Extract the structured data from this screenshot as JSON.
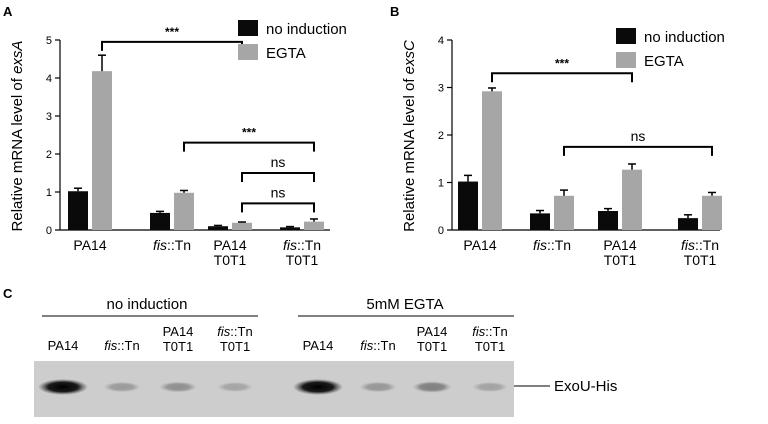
{
  "colors": {
    "no_induction": "#0a0a0a",
    "egta": "#a6a6a6"
  },
  "chart_data": [
    {
      "panel": "A",
      "type": "bar",
      "ylabel_prefix": "Relative mRNA level of ",
      "ylabel_gene": "exsA",
      "ylim": [
        0,
        5
      ],
      "yticks": [
        "0",
        "1",
        "2",
        "3",
        "4",
        "5"
      ],
      "categories": [
        {
          "italic": "",
          "plain": "PA14",
          "line2": ""
        },
        {
          "italic": "fis",
          "plain": "::Tn",
          "line2": ""
        },
        {
          "italic": "",
          "plain": "PA14",
          "line2": "T0T1"
        },
        {
          "italic": "fis",
          "plain": "::Tn",
          "line2": "T0T1"
        }
      ],
      "series": [
        {
          "name": "no induction",
          "values": [
            1.02,
            0.45,
            0.1,
            0.07
          ],
          "errors": [
            0.08,
            0.04,
            0.02,
            0.02
          ]
        },
        {
          "name": "EGTA",
          "values": [
            4.18,
            0.98,
            0.19,
            0.22
          ],
          "errors": [
            0.42,
            0.06,
            0.02,
            0.07
          ]
        }
      ],
      "comparisons": [
        {
          "label": "***",
          "from_group": 0,
          "to_group": 2,
          "level": 4.95
        },
        {
          "label": "***",
          "from_group": 1,
          "to_group": 3,
          "level": 2.3
        },
        {
          "label": "ns",
          "from_group": 2,
          "to_group": 3,
          "level": 1.5
        },
        {
          "label": "ns",
          "from_group": 2,
          "to_group": 3,
          "level": 0.7
        }
      ],
      "legend": [
        "no induction",
        "EGTA"
      ]
    },
    {
      "panel": "B",
      "type": "bar",
      "ylabel_prefix": "Relative mRNA level of ",
      "ylabel_gene": "exsC",
      "ylim": [
        0,
        4
      ],
      "yticks": [
        "0",
        "1",
        "2",
        "3",
        "4"
      ],
      "categories": [
        {
          "italic": "",
          "plain": "PA14",
          "line2": ""
        },
        {
          "italic": "fis",
          "plain": "::Tn",
          "line2": ""
        },
        {
          "italic": "",
          "plain": "PA14",
          "line2": "T0T1"
        },
        {
          "italic": "fis",
          "plain": "::Tn",
          "line2": "T0T1"
        }
      ],
      "series": [
        {
          "name": "no induction",
          "values": [
            1.02,
            0.35,
            0.4,
            0.25
          ],
          "errors": [
            0.13,
            0.06,
            0.05,
            0.07
          ]
        },
        {
          "name": "EGTA",
          "values": [
            2.92,
            0.72,
            1.27,
            0.72
          ],
          "errors": [
            0.07,
            0.12,
            0.12,
            0.07
          ]
        }
      ],
      "comparisons": [
        {
          "label": "***",
          "from_group": 0,
          "to_group": 2,
          "level": 3.3
        },
        {
          "label": "ns",
          "from_group": 1,
          "to_group": 3,
          "level": 1.75
        }
      ],
      "legend": [
        "no induction",
        "EGTA"
      ]
    }
  ],
  "panel_letters": {
    "a": "A",
    "b": "B",
    "c": "C"
  },
  "blot": {
    "group_headers": [
      "no induction",
      "5mM EGTA"
    ],
    "lanes": [
      {
        "italic": "",
        "plain": "PA14",
        "line2": "",
        "intensity": 1.0
      },
      {
        "italic": "fis",
        "plain": "::Tn",
        "line2": "",
        "intensity": 0.12
      },
      {
        "italic": "",
        "plain": "PA14",
        "line2": "T0T1",
        "intensity": 0.18
      },
      {
        "italic": "fis",
        "plain": "::Tn",
        "line2": "T0T1",
        "intensity": 0.06
      },
      {
        "italic": "",
        "plain": "PA14",
        "line2": "",
        "intensity": 1.0
      },
      {
        "italic": "fis",
        "plain": "::Tn",
        "line2": "",
        "intensity": 0.14
      },
      {
        "italic": "",
        "plain": "PA14",
        "line2": "T0T1",
        "intensity": 0.28
      },
      {
        "italic": "fis",
        "plain": "::Tn",
        "line2": "T0T1",
        "intensity": 0.07
      }
    ],
    "band_label": "ExoU-His"
  }
}
